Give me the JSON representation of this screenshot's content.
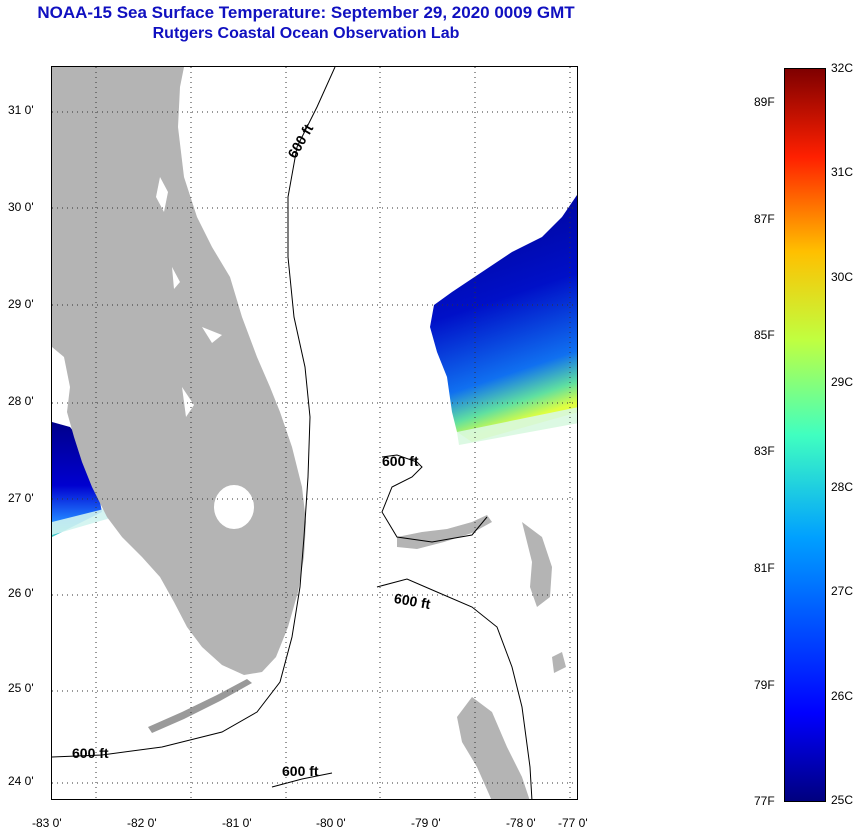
{
  "header": {
    "title_line1": "NOAA-15 Sea Surface Temperature:  September 29, 2020 0009 GMT",
    "title_line2": "Rutgers Coastal Ocean Observation Lab"
  },
  "map": {
    "lon_range": [
      -83,
      -76.8
    ],
    "lat_range": [
      23.8,
      31.5
    ],
    "lon_ticks": [
      "-83 0'",
      "-82 0'",
      "-81 0'",
      "-80 0'",
      "-79 0'",
      "-78 0'",
      "-77 0'"
    ],
    "lat_ticks": [
      "31 0'",
      "30 0'",
      "29 0'",
      "28 0'",
      "27 0'",
      "26 0'",
      "25 0'",
      "24 0'"
    ],
    "grid": "dotted",
    "land_color": "#b4b4b4",
    "contour_label": "600 ft",
    "contour_labels": [
      "600 ft",
      "600 ft",
      "600 ft",
      "600 ft",
      "600 ft"
    ]
  },
  "colorbar": {
    "min_c": 25,
    "max_c": 32,
    "celsius_labels": [
      "32C",
      "31C",
      "30C",
      "29C",
      "28C",
      "27C",
      "26C",
      "25C"
    ],
    "fahrenheit_labels": [
      "89F",
      "87F",
      "85F",
      "83F",
      "81F",
      "79F",
      "77F"
    ],
    "colormap": "jet"
  }
}
